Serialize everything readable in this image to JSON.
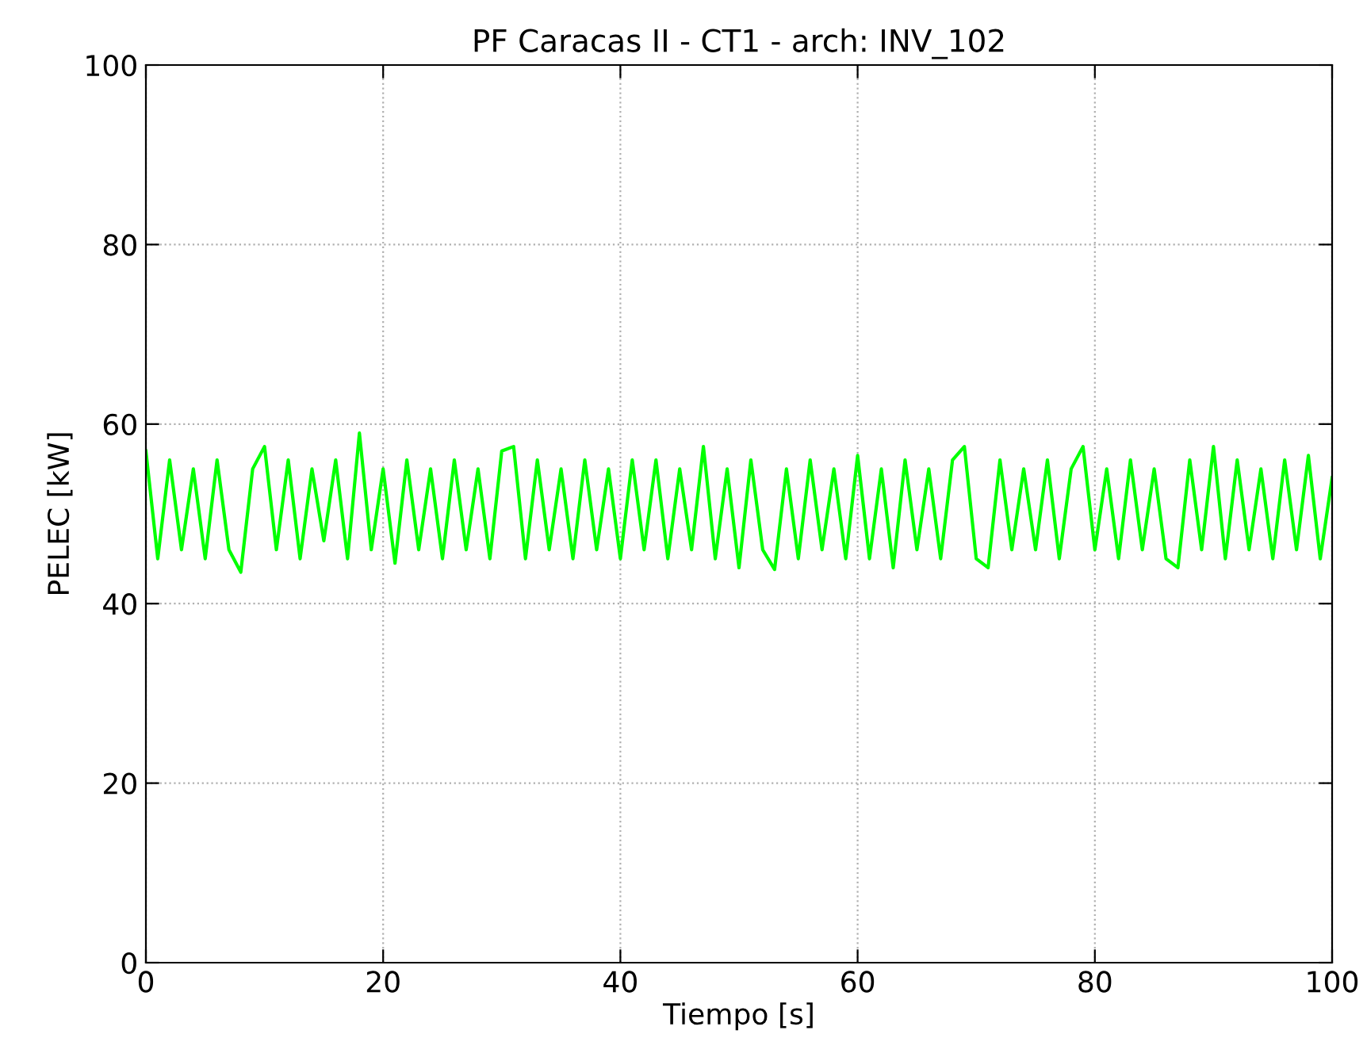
{
  "chart_data": {
    "type": "line",
    "title": "PF Caracas II - CT1 - arch: INV_102",
    "xlabel": "Tiempo [s]",
    "ylabel": "PELEC [kW]",
    "xlim": [
      0,
      100
    ],
    "ylim": [
      0,
      100
    ],
    "xticks": [
      0,
      20,
      40,
      60,
      80,
      100
    ],
    "yticks": [
      0,
      20,
      40,
      60,
      80,
      100
    ],
    "grid": true,
    "line_style": "solid",
    "marker": "none",
    "series": [
      {
        "color": "#00ff00",
        "x": [
          0,
          1,
          2,
          3,
          4,
          5,
          6,
          7,
          8,
          9,
          10,
          11,
          12,
          13,
          14,
          15,
          16,
          17,
          18,
          19,
          20,
          21,
          22,
          23,
          24,
          25,
          26,
          27,
          28,
          29,
          30,
          31,
          32,
          33,
          34,
          35,
          36,
          37,
          38,
          39,
          40,
          41,
          42,
          43,
          44,
          45,
          46,
          47,
          48,
          49,
          50,
          51,
          52,
          53,
          54,
          55,
          56,
          57,
          58,
          59,
          60,
          61,
          62,
          63,
          64,
          65,
          66,
          67,
          68,
          69,
          70,
          71,
          72,
          73,
          74,
          75,
          76,
          77,
          78,
          79,
          80,
          81,
          82,
          83,
          84,
          85,
          86,
          87,
          88,
          89,
          90,
          91,
          92,
          93,
          94,
          95,
          96,
          97,
          98,
          99,
          100
        ],
        "values": [
          57,
          45,
          56,
          46,
          55,
          45,
          56,
          46,
          43.5,
          55,
          57.5,
          46,
          56,
          45,
          55,
          47,
          56,
          45,
          59,
          46,
          55,
          44.5,
          56,
          46,
          55,
          45,
          56,
          46,
          55,
          45,
          57,
          57.5,
          45,
          56,
          46,
          55,
          45,
          56,
          46,
          55,
          45,
          56,
          46,
          56,
          45,
          55,
          46,
          57.5,
          45,
          55,
          44,
          56,
          46,
          43.8,
          55,
          45,
          56,
          46,
          55,
          45,
          56.5,
          45,
          55,
          44,
          56,
          46,
          55,
          45,
          56,
          57.5,
          45,
          44,
          56,
          46,
          55,
          46,
          56,
          45,
          55,
          57.5,
          46,
          55,
          45,
          56,
          46,
          55,
          45,
          44,
          56,
          46,
          57.5,
          45,
          56,
          46,
          55,
          45,
          56,
          46,
          56.5,
          45,
          54
        ]
      }
    ]
  }
}
